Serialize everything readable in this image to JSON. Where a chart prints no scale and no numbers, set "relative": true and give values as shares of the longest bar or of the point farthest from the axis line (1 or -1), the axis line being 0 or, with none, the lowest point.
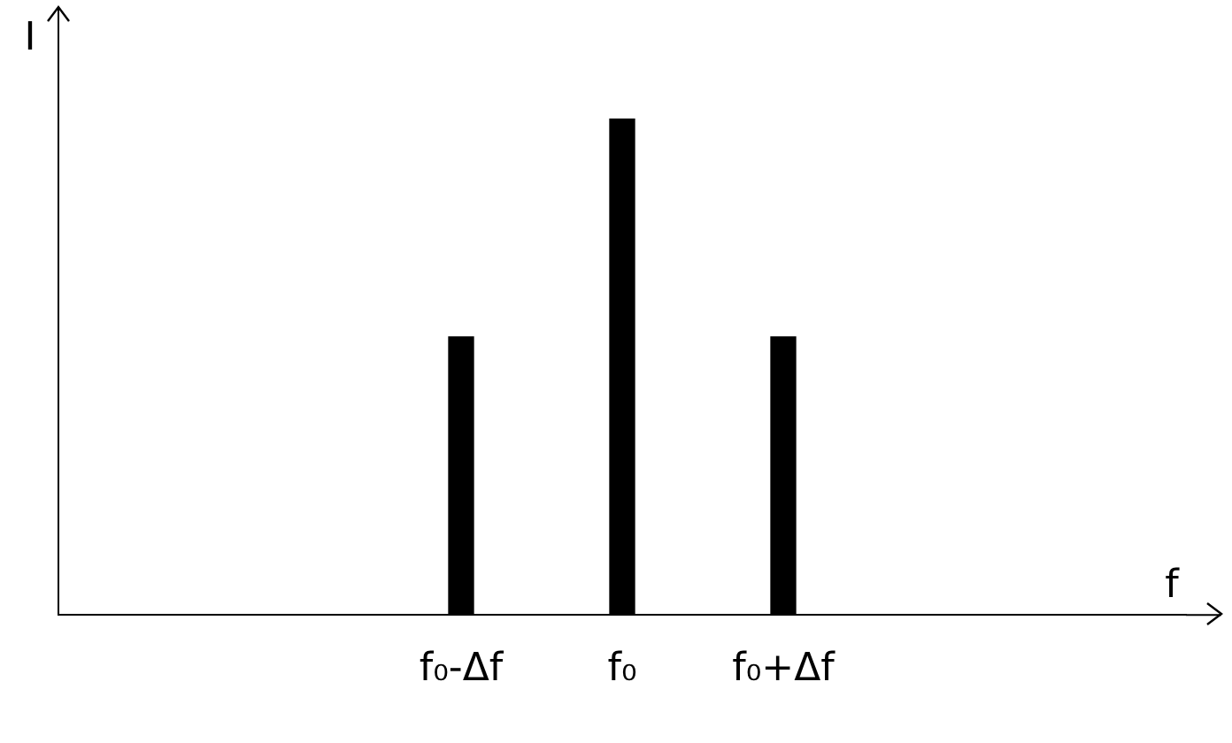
{
  "chart_data": {
    "type": "bar",
    "relative": true,
    "xlabel": "f",
    "ylabel": "I",
    "categories": [
      null,
      null,
      "f₀-Δf",
      "f₀",
      "f₀+Δf",
      null,
      null
    ],
    "values": [
      null,
      null,
      0.56,
      1,
      0.56,
      null,
      null
    ],
    "color": "#000000",
    "grid": false,
    "legend": false
  }
}
